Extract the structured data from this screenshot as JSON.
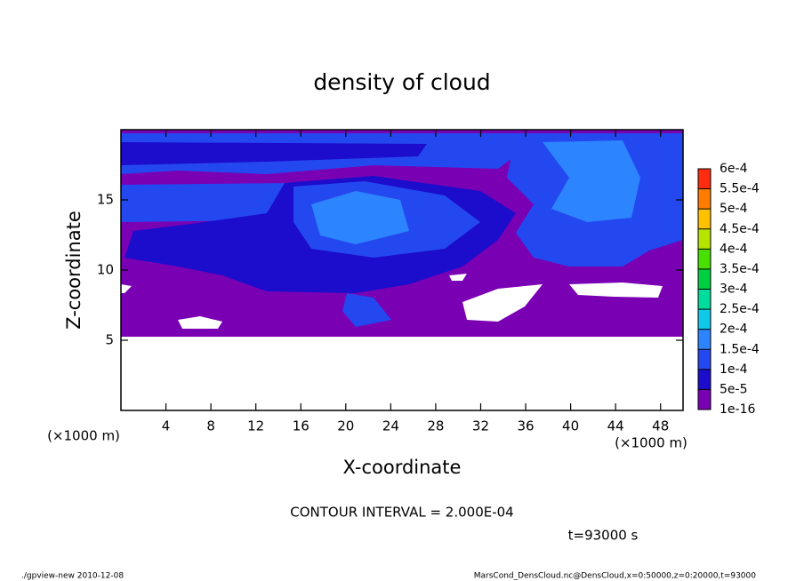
{
  "chart_data": {
    "type": "contour",
    "title": "density of cloud",
    "xlabel": "X-coordinate",
    "ylabel": "Z-coordinate",
    "xunit": "(×1000 m)",
    "yunit": "(×1000 m)",
    "xlim": [
      0,
      50
    ],
    "ylim": [
      0,
      20
    ],
    "xticks": [
      4,
      8,
      12,
      16,
      20,
      24,
      28,
      32,
      36,
      40,
      44,
      48
    ],
    "yticks": [
      5,
      10,
      15
    ],
    "levels": [
      {
        "value": 1e-16,
        "label": "1e-16"
      },
      {
        "value": 5e-05,
        "label": "5e-5"
      },
      {
        "value": 0.0001,
        "label": "1e-4"
      },
      {
        "value": 0.00015,
        "label": "1.5e-4"
      },
      {
        "value": 0.0002,
        "label": "2e-4"
      },
      {
        "value": 0.00025,
        "label": "2.5e-4"
      },
      {
        "value": 0.0003,
        "label": "3e-4"
      },
      {
        "value": 0.00035,
        "label": "3.5e-4"
      },
      {
        "value": 0.0004,
        "label": "4e-4"
      },
      {
        "value": 0.00045,
        "label": "4.5e-4"
      },
      {
        "value": 0.0005,
        "label": "5e-4"
      },
      {
        "value": 0.00055,
        "label": "5.5e-4"
      },
      {
        "value": 0.0006,
        "label": "6e-4"
      }
    ],
    "colors": [
      "#7a00b4",
      "#1c0ccc",
      "#2448f0",
      "#2c84ff",
      "#10c8e8",
      "#00dc9c",
      "#00d040",
      "#48e000",
      "#b4e400",
      "#ffc000",
      "#ff7c00",
      "#ff2c10"
    ],
    "contour_interval": "CONTOUR INTERVAL = 2.000E-04",
    "time_label": "t=93000 s",
    "footer_left": "./gpview-new   2010-12-08",
    "footer_right": "MarsCond_DensCloud.nc@DensCloud,x=0:50000,z=0:20000,t=93000"
  }
}
